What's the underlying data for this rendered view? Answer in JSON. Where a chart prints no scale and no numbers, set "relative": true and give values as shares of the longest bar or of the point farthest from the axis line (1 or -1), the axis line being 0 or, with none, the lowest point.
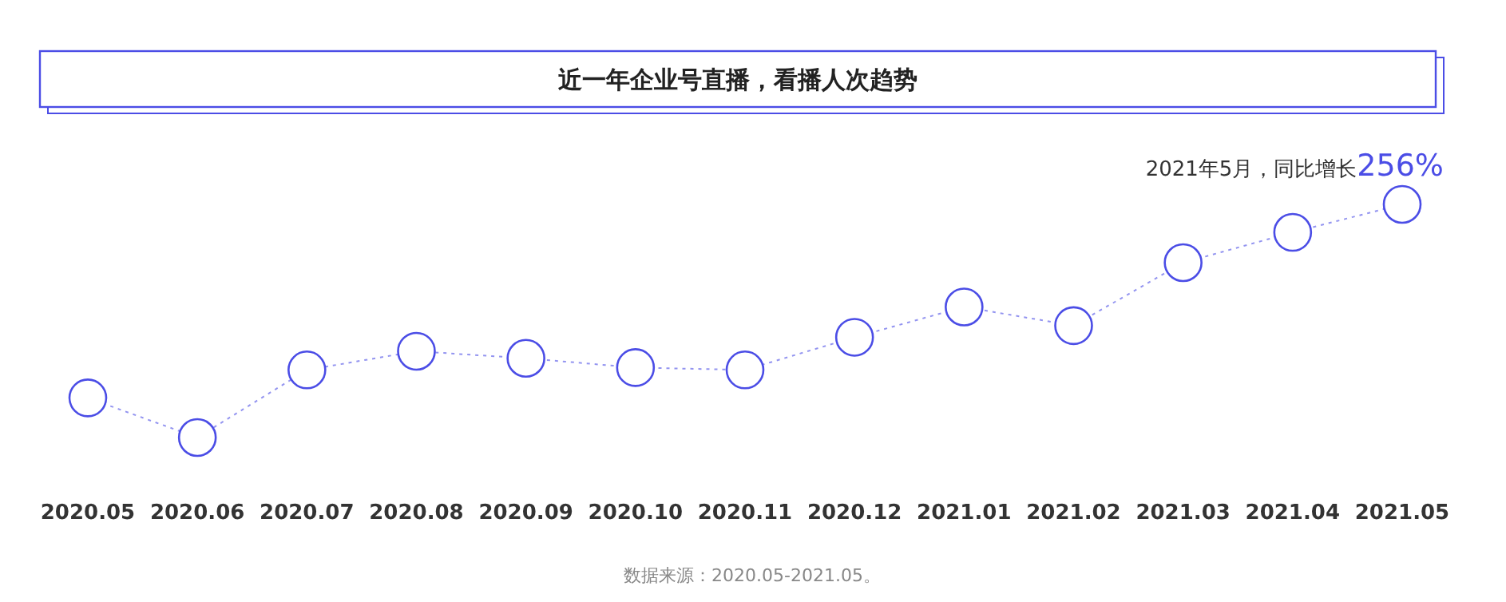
{
  "chart_data": {
    "type": "line",
    "title": "近一年企业号直播，看播人次趋势",
    "relative": true,
    "categories": [
      "2020.05",
      "2020.06",
      "2020.07",
      "2020.08",
      "2020.09",
      "2020.10",
      "2020.11",
      "2020.12",
      "2021.01",
      "2021.02",
      "2021.03",
      "2021.04",
      "2021.05"
    ],
    "series": [
      {
        "color": "#4b4de6",
        "values": [
          0.17,
          0,
          0.29,
          0.37,
          0.34,
          0.3,
          0.29,
          0.43,
          0.56,
          0.48,
          0.75,
          0.88,
          1
        ]
      }
    ],
    "marker": "circle",
    "line_style": "dotted",
    "annotations": [
      {
        "text": "2021年5月，同比增长256%",
        "x": "2021.05",
        "y": 1
      },
      "数据来源：2020.05-2021.05。"
    ]
  }
}
